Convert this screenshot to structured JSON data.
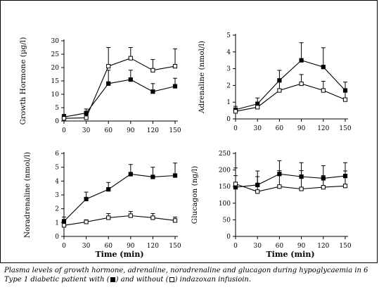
{
  "chart_data": [
    {
      "type": "line",
      "ylabel": "Growth Hormone (µg/l)",
      "xlabel": "",
      "x": [
        0,
        30,
        60,
        90,
        120,
        150
      ],
      "xticks": [
        "0",
        "30",
        "60",
        "90",
        "120",
        "150"
      ],
      "ylim": [
        0,
        30
      ],
      "yticks": [
        "0",
        "5",
        "10",
        "15",
        "20",
        "25",
        "30"
      ],
      "yticks_vals": [
        0,
        5,
        10,
        15,
        20,
        25,
        30
      ],
      "series": [
        {
          "marker": "filled",
          "values": [
            1.5,
            3,
            14,
            15.5,
            11,
            13
          ],
          "err": [
            1,
            1.5,
            5,
            3.5,
            3,
            3
          ]
        },
        {
          "marker": "open",
          "values": [
            1,
            1.2,
            20.5,
            23.5,
            19,
            20.5
          ],
          "err": [
            1,
            1,
            7,
            4,
            4,
            6.5
          ]
        }
      ]
    },
    {
      "type": "line",
      "ylabel": "Adrenaline (nmol/l)",
      "xlabel": "",
      "x": [
        0,
        30,
        60,
        90,
        120,
        150
      ],
      "xticks": [
        "0",
        "30",
        "60",
        "90",
        "120",
        "150"
      ],
      "ylim": [
        0,
        5
      ],
      "yticks": [
        "0",
        "1",
        "2",
        "3",
        "4",
        "5"
      ],
      "yticks_vals": [
        0,
        1,
        2,
        3,
        4,
        5
      ],
      "series": [
        {
          "marker": "filled",
          "values": [
            0.55,
            0.9,
            2.3,
            3.5,
            3.1,
            1.7
          ],
          "err": [
            0.2,
            0.35,
            0.6,
            1.05,
            1.15,
            0.5
          ]
        },
        {
          "marker": "open",
          "values": [
            0.45,
            0.7,
            1.7,
            2.1,
            1.7,
            1.15
          ],
          "err": [
            0.2,
            0.3,
            0.55,
            0.55,
            0.55,
            0.5
          ]
        }
      ]
    },
    {
      "type": "line",
      "ylabel": "Noradrenaline (nmol/l)",
      "xlabel": "Time (min)",
      "x": [
        0,
        30,
        60,
        90,
        120,
        150
      ],
      "xticks": [
        "0",
        "30",
        "60",
        "90",
        "120",
        "150"
      ],
      "ylim": [
        0,
        6
      ],
      "yticks": [
        "0",
        "1",
        "2",
        "3",
        "4",
        "5",
        "6"
      ],
      "yticks_vals": [
        0,
        1,
        2,
        3,
        4,
        5,
        6
      ],
      "series": [
        {
          "marker": "filled",
          "values": [
            1.1,
            2.7,
            3.4,
            4.5,
            4.3,
            4.4
          ],
          "err": [
            0.3,
            0.5,
            0.5,
            0.7,
            0.7,
            0.9
          ]
        },
        {
          "marker": "open",
          "values": [
            0.8,
            1.05,
            1.35,
            1.5,
            1.35,
            1.15
          ],
          "err": [
            0.15,
            0.15,
            0.3,
            0.3,
            0.3,
            0.25
          ]
        }
      ]
    },
    {
      "type": "line",
      "ylabel": "Glucagon (ng/l)",
      "xlabel": "Time (min)",
      "x": [
        0,
        30,
        60,
        90,
        120,
        150
      ],
      "xticks": [
        "0",
        "30",
        "60",
        "90",
        "120",
        "150"
      ],
      "ylim": [
        0,
        250
      ],
      "yticks": [
        "0",
        "50",
        "100",
        "150",
        "200",
        "250"
      ],
      "yticks_vals": [
        0,
        50,
        100,
        150,
        200,
        250
      ],
      "series": [
        {
          "marker": "filled",
          "values": [
            148,
            155,
            188,
            180,
            175,
            182
          ],
          "err": [
            35,
            42,
            40,
            42,
            38,
            40
          ]
        },
        {
          "marker": "open",
          "values": [
            158,
            135,
            150,
            143,
            148,
            152
          ],
          "err": [
            48,
            45,
            48,
            55,
            35,
            45
          ]
        }
      ]
    }
  ],
  "caption": {
    "line1": "Plasma levels of growth hormone, adrenaline, noradrenaline and glucagon during hypoglycaemia in 6",
    "line2_a": "Type 1 diabetic patient with (",
    "line2_b": ") and without (",
    "line2_c": ") indazoxan infusioin."
  }
}
